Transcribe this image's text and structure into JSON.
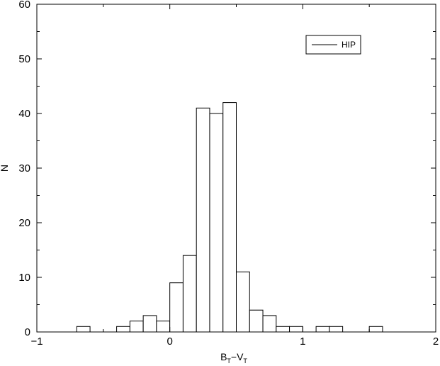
{
  "chart_data": {
    "type": "bar",
    "title": "",
    "xlabel": {
      "main": "B",
      "sub1": "T",
      "mid": "−V",
      "sub2": "T"
    },
    "ylabel": "N",
    "xlim": [
      -1,
      2
    ],
    "ylim": [
      0,
      60
    ],
    "bin_width": 0.1,
    "grid": false,
    "legend": {
      "position": "top-right",
      "entries": [
        "HIP"
      ]
    },
    "x_ticks": [
      -1,
      0,
      1,
      2
    ],
    "x_tick_labels": [
      "−1",
      "0",
      "1",
      "2"
    ],
    "y_ticks": [
      0,
      10,
      20,
      30,
      40,
      50,
      60
    ],
    "y_tick_labels": [
      "0",
      "10",
      "20",
      "30",
      "40",
      "50",
      "60"
    ],
    "series": [
      {
        "name": "HIP",
        "bins": [
          {
            "x0": -0.7,
            "x1": -0.6,
            "count": 1
          },
          {
            "x0": -0.4,
            "x1": -0.3,
            "count": 1
          },
          {
            "x0": -0.3,
            "x1": -0.2,
            "count": 2
          },
          {
            "x0": -0.2,
            "x1": -0.1,
            "count": 3
          },
          {
            "x0": -0.1,
            "x1": 0.0,
            "count": 2
          },
          {
            "x0": 0.0,
            "x1": 0.1,
            "count": 9
          },
          {
            "x0": 0.1,
            "x1": 0.2,
            "count": 14
          },
          {
            "x0": 0.2,
            "x1": 0.3,
            "count": 41
          },
          {
            "x0": 0.3,
            "x1": 0.4,
            "count": 40
          },
          {
            "x0": 0.4,
            "x1": 0.5,
            "count": 42
          },
          {
            "x0": 0.5,
            "x1": 0.6,
            "count": 11
          },
          {
            "x0": 0.6,
            "x1": 0.7,
            "count": 4
          },
          {
            "x0": 0.7,
            "x1": 0.8,
            "count": 3
          },
          {
            "x0": 0.8,
            "x1": 0.9,
            "count": 1
          },
          {
            "x0": 0.9,
            "x1": 1.0,
            "count": 1
          },
          {
            "x0": 1.1,
            "x1": 1.2,
            "count": 1
          },
          {
            "x0": 1.2,
            "x1": 1.3,
            "count": 1
          },
          {
            "x0": 1.5,
            "x1": 1.6,
            "count": 1
          }
        ]
      }
    ]
  }
}
